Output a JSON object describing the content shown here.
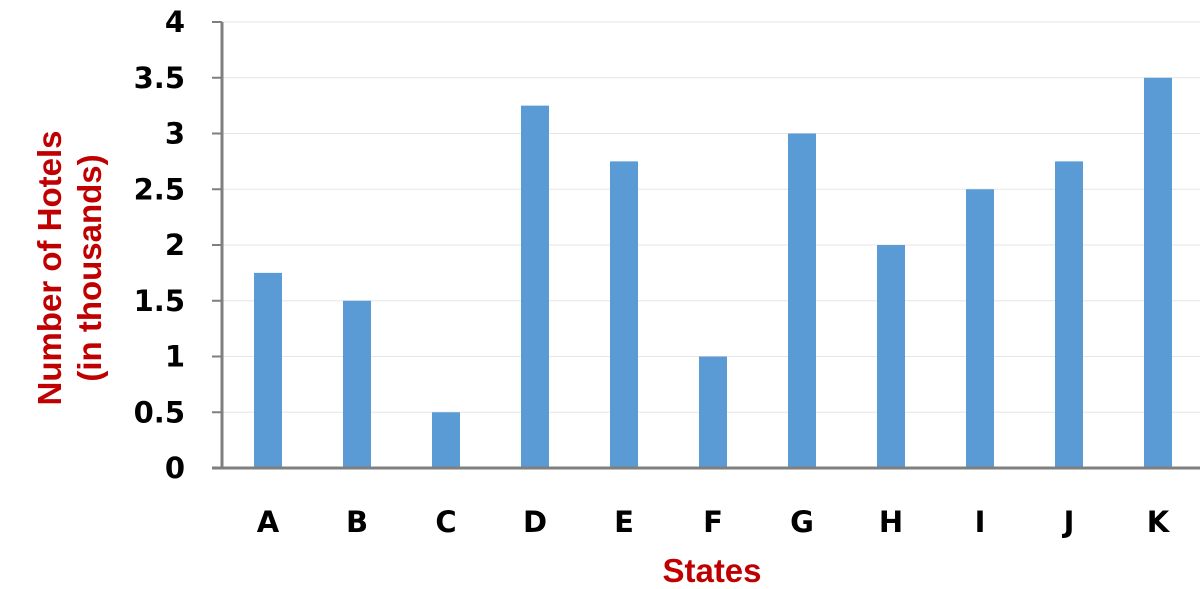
{
  "colors": {
    "bar": "#5b9bd5",
    "axis": "#7f7f7f",
    "grid": "#e6e6e6",
    "axis_title": "#c00000",
    "tick_text": "#000000"
  },
  "chart_data": {
    "type": "bar",
    "title": "",
    "xlabel": "States",
    "ylabel_lines": [
      "Number of Hotels",
      "(in thousands)"
    ],
    "categories": [
      "A",
      "B",
      "C",
      "D",
      "E",
      "F",
      "G",
      "H",
      "I",
      "J",
      "K"
    ],
    "values": [
      1.75,
      1.5,
      0.5,
      3.25,
      2.75,
      1.0,
      3.0,
      2.0,
      2.5,
      2.75,
      3.5
    ],
    "ylim": [
      0,
      4
    ],
    "yticks": [
      {
        "value": 0,
        "label": "0"
      },
      {
        "value": 0.5,
        "label": "0.5"
      },
      {
        "value": 1,
        "label": "1"
      },
      {
        "value": 1.5,
        "label": "1.5"
      },
      {
        "value": 2,
        "label": "2"
      },
      {
        "value": 2.5,
        "label": "2.5"
      },
      {
        "value": 3,
        "label": "3"
      },
      {
        "value": 3.5,
        "label": "3.5"
      },
      {
        "value": 4,
        "label": "4"
      }
    ],
    "grid": true,
    "legend": "none"
  }
}
